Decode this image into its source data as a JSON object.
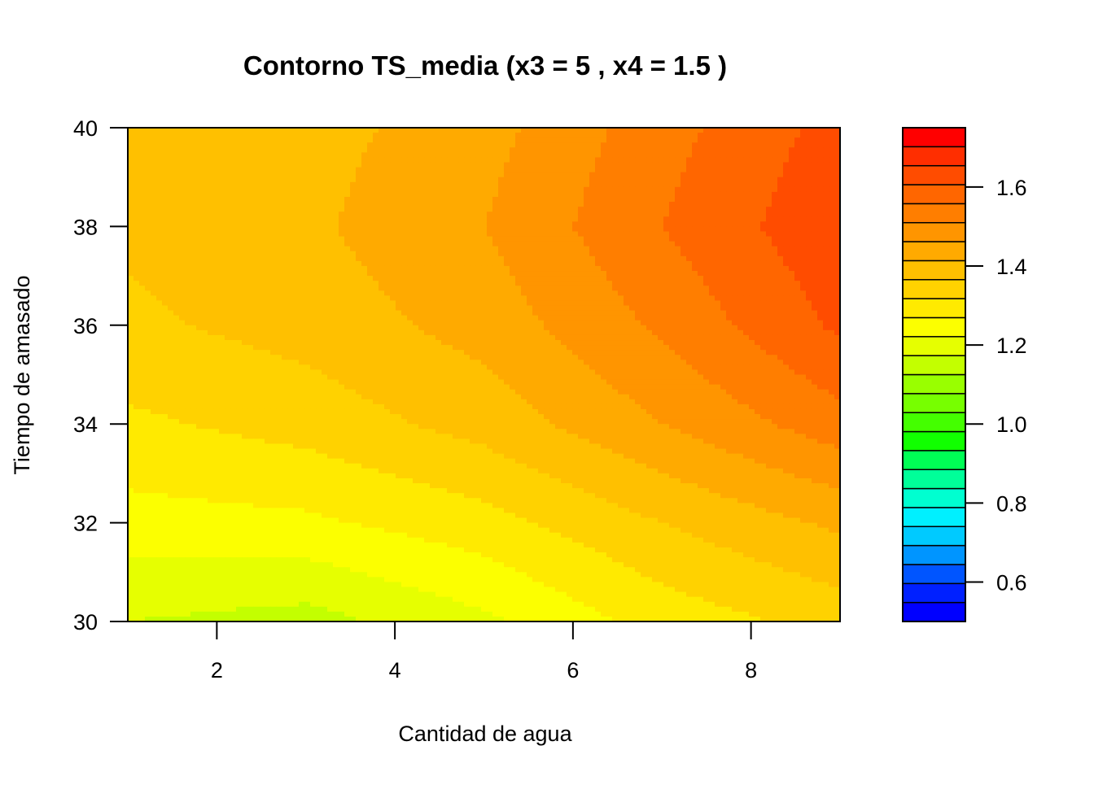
{
  "chart_data": {
    "type": "heatmap",
    "subtype": "filled-contour",
    "title": "Contorno TS_media (x3 = 5 , x4 = 1.5 )",
    "xlabel": "Cantidad de agua",
    "ylabel": "Tiempo de amasado",
    "xlim": [
      1,
      9
    ],
    "ylim": [
      30,
      40
    ],
    "x_ticks": [
      "2",
      "4",
      "6",
      "8"
    ],
    "y_ticks": [
      "30",
      "32",
      "34",
      "36",
      "38",
      "40"
    ],
    "colorbar": {
      "range": [
        0.5,
        1.75
      ],
      "tick_values": [
        0.6,
        0.8,
        1.0,
        1.2,
        1.4,
        1.6
      ],
      "tick_labels": [
        "0.6",
        "0.8",
        "1.0",
        "1.2",
        "1.4",
        "1.6"
      ],
      "level_step": 0.05,
      "palette": [
        "#0000ff",
        "#0020ff",
        "#0055ff",
        "#0095ff",
        "#00caff",
        "#00f0ff",
        "#00ffd0",
        "#00ff99",
        "#00ff55",
        "#11ff00",
        "#44ff00",
        "#77ff00",
        "#99ff00",
        "#c3ff00",
        "#e6ff00",
        "#fcff00",
        "#ffea00",
        "#ffd200",
        "#ffc000",
        "#ffaa00",
        "#ff9500",
        "#ff7e00",
        "#ff6600",
        "#ff4c00",
        "#ff2e00",
        "#ff0000"
      ]
    },
    "surface_samples": {
      "x": [
        1,
        3,
        5,
        7,
        9
      ],
      "y": [
        30,
        32,
        34,
        36,
        38,
        40
      ],
      "z": [
        [
          1.2,
          1.18,
          1.24,
          1.32,
          1.37
        ],
        [
          1.28,
          1.29,
          1.33,
          1.4,
          1.46
        ],
        [
          1.34,
          1.37,
          1.42,
          1.5,
          1.58
        ],
        [
          1.39,
          1.42,
          1.47,
          1.56,
          1.66
        ],
        [
          1.41,
          1.44,
          1.5,
          1.6,
          1.69
        ],
        [
          1.42,
          1.43,
          1.48,
          1.58,
          1.67
        ]
      ]
    }
  }
}
